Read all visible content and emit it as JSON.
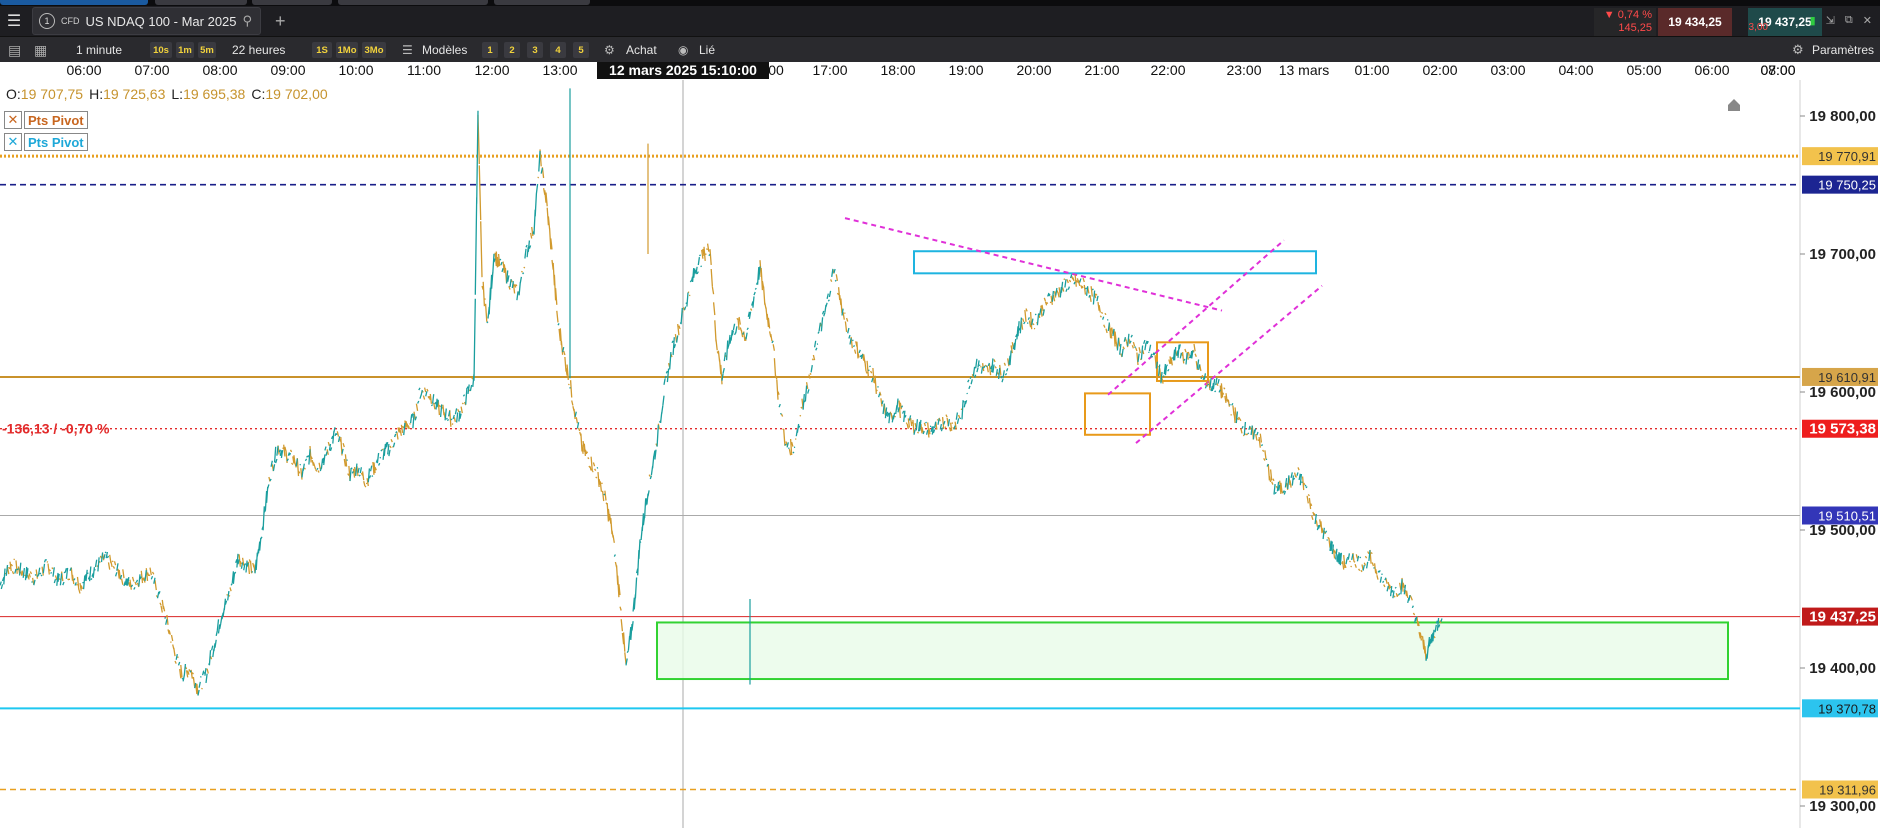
{
  "window": {
    "menu_icon": "hamburger-menu-icon",
    "tab": {
      "number": "1",
      "type": "CFD",
      "title": "US NDAQ 100 - Mar 2025",
      "search_icon": "search-icon"
    },
    "add_tab_icon": "plus-icon"
  },
  "quote": {
    "change_pct": "▼ 0,74 %",
    "change_pts": "145,25",
    "bid": "19 434,25",
    "spread": "3,00",
    "ask": "19 437,25"
  },
  "toolbar": {
    "timeframe": "1 minute",
    "tf_buttons": [
      "10s",
      "1m",
      "5m"
    ],
    "duration": "22 heures",
    "range_buttons": [
      "1S",
      "1Mo",
      "3Mo"
    ],
    "models_label": "Modèles",
    "layout_buttons": [
      "1",
      "2",
      "3",
      "4",
      "5"
    ],
    "buy_label": "Achat",
    "link_label": "Lié",
    "settings_label": "Paramètres"
  },
  "ohlc": {
    "o_label": "O:",
    "o": "19 707,75",
    "h_label": "H:",
    "h": "19 725,63",
    "l_label": "L:",
    "l": "19 695,38",
    "c_label": "C:",
    "c": "19 702,00"
  },
  "legend": [
    {
      "label": "Pts Pivot",
      "color": "#c8661f"
    },
    {
      "label": "Pts Pivot",
      "color": "#1ea8d8"
    }
  ],
  "chart_data": {
    "type": "line",
    "x_ticks": [
      "06:00",
      "07:00",
      "08:00",
      "09:00",
      "10:00",
      "11:00",
      "12:00",
      "13:00",
      "00",
      "17:00",
      "18:00",
      "19:00",
      "20:00",
      "21:00",
      "22:00",
      "23:00",
      "13 mars",
      "01:00",
      "02:00",
      "03:00",
      "04:00",
      "05:00",
      "06:00",
      "07:00",
      "08:00"
    ],
    "crosshair_label": "12 mars 2025 15:10:00",
    "y_ticks": [
      {
        "label": "19 800,00",
        "value": 19800
      },
      {
        "label": "19 700,00",
        "value": 19700
      },
      {
        "label": "19 600,00",
        "value": 19600
      },
      {
        "label": "19 500,00",
        "value": 19500
      },
      {
        "label": "19 400,00",
        "value": 19400
      },
      {
        "label": "19 300,00",
        "value": 19300
      }
    ],
    "ylim": [
      19285,
      19830
    ],
    "price_series": [
      [
        0,
        19460
      ],
      [
        10,
        19475
      ],
      [
        22,
        19470
      ],
      [
        35,
        19465
      ],
      [
        48,
        19475
      ],
      [
        58,
        19463
      ],
      [
        70,
        19470
      ],
      [
        80,
        19460
      ],
      [
        92,
        19470
      ],
      [
        105,
        19480
      ],
      [
        118,
        19470
      ],
      [
        130,
        19460
      ],
      [
        140,
        19465
      ],
      [
        150,
        19470
      ],
      [
        160,
        19450
      ],
      [
        168,
        19430
      ],
      [
        175,
        19410
      ],
      [
        182,
        19395
      ],
      [
        190,
        19400
      ],
      [
        198,
        19385
      ],
      [
        206,
        19395
      ],
      [
        215,
        19420
      ],
      [
        222,
        19440
      ],
      [
        230,
        19455
      ],
      [
        238,
        19480
      ],
      [
        246,
        19475
      ],
      [
        255,
        19470
      ],
      [
        262,
        19500
      ],
      [
        270,
        19540
      ],
      [
        278,
        19560
      ],
      [
        286,
        19555
      ],
      [
        295,
        19550
      ],
      [
        302,
        19540
      ],
      [
        310,
        19555
      ],
      [
        318,
        19545
      ],
      [
        326,
        19555
      ],
      [
        335,
        19570
      ],
      [
        342,
        19560
      ],
      [
        350,
        19540
      ],
      [
        358,
        19545
      ],
      [
        366,
        19535
      ],
      [
        374,
        19545
      ],
      [
        382,
        19555
      ],
      [
        390,
        19560
      ],
      [
        398,
        19570
      ],
      [
        406,
        19575
      ],
      [
        414,
        19580
      ],
      [
        420,
        19600
      ],
      [
        428,
        19600
      ],
      [
        436,
        19590
      ],
      [
        444,
        19585
      ],
      [
        452,
        19580
      ],
      [
        460,
        19585
      ],
      [
        468,
        19600
      ],
      [
        474,
        19610
      ],
      [
        478,
        19800
      ],
      [
        482,
        19680
      ],
      [
        488,
        19650
      ],
      [
        494,
        19700
      ],
      [
        502,
        19690
      ],
      [
        510,
        19680
      ],
      [
        518,
        19670
      ],
      [
        526,
        19700
      ],
      [
        534,
        19720
      ],
      [
        540,
        19770
      ],
      [
        546,
        19740
      ],
      [
        552,
        19700
      ],
      [
        558,
        19650
      ],
      [
        566,
        19620
      ],
      [
        574,
        19590
      ],
      [
        582,
        19560
      ],
      [
        590,
        19550
      ],
      [
        598,
        19540
      ],
      [
        606,
        19520
      ],
      [
        612,
        19500
      ],
      [
        620,
        19450
      ],
      [
        626,
        19400
      ],
      [
        632,
        19430
      ],
      [
        640,
        19490
      ],
      [
        648,
        19530
      ],
      [
        656,
        19560
      ],
      [
        664,
        19600
      ],
      [
        672,
        19630
      ],
      [
        680,
        19650
      ],
      [
        688,
        19670
      ],
      [
        696,
        19690
      ],
      [
        704,
        19700
      ],
      [
        710,
        19705
      ],
      [
        716,
        19640
      ],
      [
        722,
        19610
      ],
      [
        730,
        19640
      ],
      [
        738,
        19650
      ],
      [
        746,
        19640
      ],
      [
        754,
        19670
      ],
      [
        760,
        19690
      ],
      [
        766,
        19660
      ],
      [
        772,
        19640
      ],
      [
        778,
        19600
      ],
      [
        786,
        19560
      ],
      [
        794,
        19560
      ],
      [
        802,
        19590
      ],
      [
        810,
        19610
      ],
      [
        818,
        19640
      ],
      [
        826,
        19660
      ],
      [
        834,
        19690
      ],
      [
        842,
        19660
      ],
      [
        850,
        19640
      ],
      [
        858,
        19630
      ],
      [
        866,
        19620
      ],
      [
        874,
        19610
      ],
      [
        882,
        19590
      ],
      [
        890,
        19580
      ],
      [
        898,
        19590
      ],
      [
        906,
        19580
      ],
      [
        914,
        19575
      ],
      [
        922,
        19575
      ],
      [
        930,
        19572
      ],
      [
        938,
        19575
      ],
      [
        946,
        19580
      ],
      [
        954,
        19575
      ],
      [
        962,
        19585
      ],
      [
        970,
        19610
      ],
      [
        978,
        19620
      ],
      [
        986,
        19615
      ],
      [
        994,
        19620
      ],
      [
        1002,
        19612
      ],
      [
        1010,
        19625
      ],
      [
        1018,
        19645
      ],
      [
        1026,
        19655
      ],
      [
        1034,
        19650
      ],
      [
        1042,
        19660
      ],
      [
        1050,
        19668
      ],
      [
        1058,
        19672
      ],
      [
        1066,
        19678
      ],
      [
        1074,
        19680
      ],
      [
        1082,
        19678
      ],
      [
        1090,
        19672
      ],
      [
        1098,
        19665
      ],
      [
        1106,
        19650
      ],
      [
        1114,
        19640
      ],
      [
        1122,
        19630
      ],
      [
        1130,
        19640
      ],
      [
        1138,
        19625
      ],
      [
        1146,
        19635
      ],
      [
        1154,
        19625
      ],
      [
        1162,
        19610
      ],
      [
        1170,
        19620
      ],
      [
        1178,
        19630
      ],
      [
        1186,
        19625
      ],
      [
        1194,
        19630
      ],
      [
        1202,
        19610
      ],
      [
        1210,
        19605
      ],
      [
        1218,
        19605
      ],
      [
        1226,
        19595
      ],
      [
        1234,
        19585
      ],
      [
        1242,
        19575
      ],
      [
        1250,
        19570
      ],
      [
        1258,
        19570
      ],
      [
        1266,
        19550
      ],
      [
        1274,
        19530
      ],
      [
        1282,
        19530
      ],
      [
        1290,
        19535
      ],
      [
        1298,
        19540
      ],
      [
        1306,
        19530
      ],
      [
        1314,
        19510
      ],
      [
        1322,
        19500
      ],
      [
        1330,
        19490
      ],
      [
        1338,
        19480
      ],
      [
        1346,
        19475
      ],
      [
        1354,
        19480
      ],
      [
        1362,
        19475
      ],
      [
        1370,
        19480
      ],
      [
        1378,
        19470
      ],
      [
        1386,
        19460
      ],
      [
        1394,
        19455
      ],
      [
        1402,
        19460
      ],
      [
        1410,
        19450
      ],
      [
        1418,
        19430
      ],
      [
        1426,
        19410
      ],
      [
        1434,
        19425
      ],
      [
        1442,
        19440
      ]
    ],
    "horizontal_lines": [
      {
        "value": 19770.91,
        "label": "19 770,91",
        "color": "#e8a020",
        "style": "dotted-thick",
        "tag_bg": "#f2c24c",
        "tag_fg": "#333333"
      },
      {
        "value": 19750.25,
        "label": "19 750,25",
        "color": "#1a1f8a",
        "style": "dashed",
        "tag_bg": "#1c2592",
        "tag_fg": "#ffffff"
      },
      {
        "value": 19610.91,
        "label": "19 610,91",
        "color": "#c9922b",
        "style": "solid",
        "tag_bg": "#d6a54a",
        "tag_fg": "#333333"
      },
      {
        "value": 19573.38,
        "label": "19 573,38",
        "color": "#e22a2a",
        "style": "dotted",
        "tag_bg": "#ee1e1e",
        "tag_fg": "#ffffff"
      },
      {
        "value": 19510.51,
        "label": "19 510,51",
        "color": "#aaaaaa",
        "style": "solid-thin",
        "tag_bg": "#3336b8",
        "tag_fg": "#ffffff"
      },
      {
        "value": 19437.25,
        "label": "19 437,25",
        "color": "#d92424",
        "style": "solid-thin",
        "tag_bg": "#c01a1a",
        "tag_fg": "#ffffff"
      },
      {
        "value": 19370.78,
        "label": "19 370,78",
        "color": "#1ec8f0",
        "style": "solid",
        "tag_bg": "#2cc4ee",
        "tag_fg": "#1a1a1a"
      },
      {
        "value": 19311.96,
        "label": "19 311,96",
        "color": "#e8a020",
        "style": "dashed",
        "tag_bg": "#f2c24c",
        "tag_fg": "#333333"
      }
    ],
    "change_label": {
      "text": "-136,13 / -0,70 %",
      "value": 19573.38,
      "color": "#e22a2a"
    },
    "colors": {
      "bull": "#1a9e9e",
      "bear": "#d19a2e",
      "pink": "#e030d8",
      "green_box": "#32d232",
      "cyan_box": "#1eb4e0",
      "orange_box": "#e89a1a"
    }
  }
}
